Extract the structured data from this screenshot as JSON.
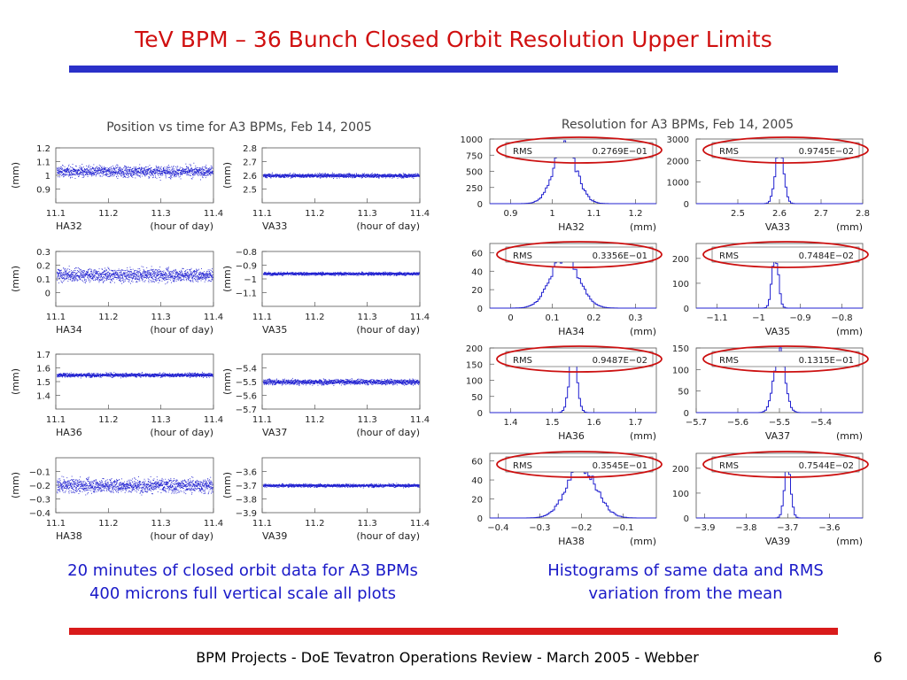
{
  "slide": {
    "title": "TeV BPM – 36 Bunch Closed Orbit Resolution Upper Limits",
    "caption_left_1": "20 minutes of closed orbit data for A3 BPMs",
    "caption_left_2": "400 microns full vertical scale all plots",
    "caption_right_1": "Histograms of same data and RMS",
    "caption_right_2": "variation from the mean",
    "footer": "BPM Projects - DoE Tevatron Operations Review - March 2005 - Webber",
    "page_number": "6",
    "colors": {
      "title": "#d01010",
      "caption": "#1a1ac8",
      "top_rule": "#2a30c9",
      "bottom_rule": "#d91b1b",
      "data": "#2020d0",
      "highlight": "#cc1010"
    }
  },
  "chart_data": [
    {
      "type": "scatter",
      "title": "Position vs time for A3 BPMs, Feb 14, 2005",
      "xlabel": "(hour of day)",
      "ylabel": "(mm)",
      "xlim": [
        11.1,
        11.4
      ],
      "x_ticks": [
        "11.1",
        "11.2",
        "11.3",
        "11.4"
      ],
      "panels": [
        {
          "name": "HA32",
          "ylim": [
            0.8,
            1.2
          ],
          "y_ticks": [
            "1.2",
            "1.1",
            "1",
            "0.9"
          ],
          "mean": 1.03,
          "rms": 0.02769
        },
        {
          "name": "VA33",
          "ylim": [
            2.4,
            2.8
          ],
          "y_ticks": [
            "2.8",
            "2.7",
            "2.6",
            "2.5"
          ],
          "mean": 2.6,
          "rms": 0.009745
        },
        {
          "name": "HA34",
          "ylim": [
            -0.1,
            0.3
          ],
          "y_ticks": [
            "0.3",
            "0.2",
            "0.1",
            "0"
          ],
          "mean": 0.13,
          "rms": 0.03356
        },
        {
          "name": "VA35",
          "ylim": [
            -1.2,
            -0.8
          ],
          "y_ticks": [
            "-0.8",
            "-0.9",
            "-1",
            "-1.1"
          ],
          "mean": -0.96,
          "rms": 0.007484
        },
        {
          "name": "HA36",
          "ylim": [
            1.3,
            1.7
          ],
          "y_ticks": [
            "1.7",
            "1.6",
            "1.5",
            "1.4"
          ],
          "mean": 1.55,
          "rms": 0.009487
        },
        {
          "name": "VA37",
          "ylim": [
            -5.7,
            -5.3
          ],
          "y_ticks": [
            "-5.4",
            "-5.5",
            "-5.6",
            "-5.7"
          ],
          "mean": -5.5,
          "rms": 0.01315
        },
        {
          "name": "HA38",
          "ylim": [
            -0.4,
            0.0
          ],
          "y_ticks": [
            "-0.1",
            "-0.2",
            "-0.3",
            "-0.4"
          ],
          "mean": -0.2,
          "rms": 0.03545
        },
        {
          "name": "VA39",
          "ylim": [
            -3.9,
            -3.5
          ],
          "y_ticks": [
            "-3.6",
            "-3.7",
            "-3.8",
            "-3.9"
          ],
          "mean": -3.7,
          "rms": 0.007544
        }
      ]
    },
    {
      "type": "bar",
      "title": "Resolution for A3 BPMs, Feb 14, 2005",
      "xlabel": "(mm)",
      "stat_label": "RMS",
      "panels": [
        {
          "name": "HA32",
          "rms_text": "0.2769E−01",
          "rms": 0.02769,
          "mean": 1.03,
          "xlim": [
            0.85,
            1.25
          ],
          "x_ticks": [
            "0.9",
            "1",
            "1.1",
            "1.2"
          ],
          "x_tick_values": [
            0.9,
            1.0,
            1.1,
            1.2
          ],
          "ylim": [
            0,
            1000
          ],
          "y_ticks": [
            "1000",
            "750",
            "500",
            "250",
            "0"
          ],
          "y_tick_values": [
            1000,
            750,
            500,
            250,
            0
          ],
          "peak": 880
        },
        {
          "name": "VA33",
          "rms_text": "0.9745E−02",
          "rms": 0.009745,
          "mean": 2.6,
          "xlim": [
            2.4,
            2.8
          ],
          "x_ticks": [
            "2.5",
            "2.6",
            "2.7",
            "2.8"
          ],
          "x_tick_values": [
            2.5,
            2.6,
            2.7,
            2.8
          ],
          "ylim": [
            0,
            3000
          ],
          "y_ticks": [
            "3000",
            "2000",
            "1000",
            "0"
          ],
          "y_tick_values": [
            3000,
            2000,
            1000,
            0
          ],
          "peak": 2600
        },
        {
          "name": "HA34",
          "rms_text": "0.3356E−01",
          "rms": 0.03356,
          "mean": 0.13,
          "xlim": [
            -0.05,
            0.35
          ],
          "x_ticks": [
            "0",
            "0.1",
            "0.2",
            "0.3"
          ],
          "x_tick_values": [
            0,
            0.1,
            0.2,
            0.3
          ],
          "ylim": [
            0,
            70
          ],
          "y_ticks": [
            "60",
            "40",
            "20",
            "0"
          ],
          "y_tick_values": [
            60,
            40,
            20,
            0
          ],
          "peak": 56
        },
        {
          "name": "VA35",
          "rms_text": "0.7484E−02",
          "rms": 0.007484,
          "mean": -0.96,
          "xlim": [
            -1.15,
            -0.75
          ],
          "x_ticks": [
            "−1.1",
            "−1",
            "−0.9",
            "−0.8"
          ],
          "x_tick_values": [
            -1.1,
            -1.0,
            -0.9,
            -0.8
          ],
          "ylim": [
            0,
            260
          ],
          "y_ticks": [
            "200",
            "100",
            "0"
          ],
          "y_tick_values": [
            200,
            100,
            0
          ],
          "peak": 215
        },
        {
          "name": "HA36",
          "rms_text": "0.9487E−02",
          "rms": 0.009487,
          "mean": 1.55,
          "xlim": [
            1.35,
            1.75
          ],
          "x_ticks": [
            "1.4",
            "1.5",
            "1.6",
            "1.7"
          ],
          "x_tick_values": [
            1.4,
            1.5,
            1.6,
            1.7
          ],
          "ylim": [
            0,
            200
          ],
          "y_ticks": [
            "200",
            "150",
            "100",
            "50",
            "0"
          ],
          "y_tick_values": [
            200,
            150,
            100,
            50,
            0
          ],
          "peak": 175
        },
        {
          "name": "VA37",
          "rms_text": "0.1315E−01",
          "rms": 0.01315,
          "mean": -5.5,
          "xlim": [
            -5.7,
            -5.3
          ],
          "x_ticks": [
            "−5.7",
            "−5.6",
            "−5.5",
            "−5.4"
          ],
          "x_tick_values": [
            -5.7,
            -5.6,
            -5.5,
            -5.4
          ],
          "ylim": [
            0,
            150
          ],
          "y_ticks": [
            "150",
            "100",
            "50",
            "0"
          ],
          "y_tick_values": [
            150,
            100,
            50,
            0
          ],
          "peak": 140
        },
        {
          "name": "HA38",
          "rms_text": "0.3545E−01",
          "rms": 0.03545,
          "mean": -0.2,
          "xlim": [
            -0.42,
            -0.02
          ],
          "x_ticks": [
            "−0.4",
            "−0.3",
            "−0.2",
            "−0.1"
          ],
          "x_tick_values": [
            -0.4,
            -0.3,
            -0.2,
            -0.1
          ],
          "ylim": [
            0,
            68
          ],
          "y_ticks": [
            "60",
            "40",
            "20",
            "0"
          ],
          "y_tick_values": [
            60,
            40,
            20,
            0
          ],
          "peak": 54
        },
        {
          "name": "VA39",
          "rms_text": "0.7544E−02",
          "rms": 0.007544,
          "mean": -3.7,
          "xlim": [
            -3.92,
            -3.52
          ],
          "x_ticks": [
            "−3.9",
            "−3.8",
            "−3.7",
            "−3.6"
          ],
          "x_tick_values": [
            -3.9,
            -3.8,
            -3.7,
            -3.6
          ],
          "ylim": [
            0,
            260
          ],
          "y_ticks": [
            "200",
            "100",
            "0"
          ],
          "y_tick_values": [
            200,
            100,
            0
          ],
          "peak": 215
        }
      ]
    }
  ]
}
